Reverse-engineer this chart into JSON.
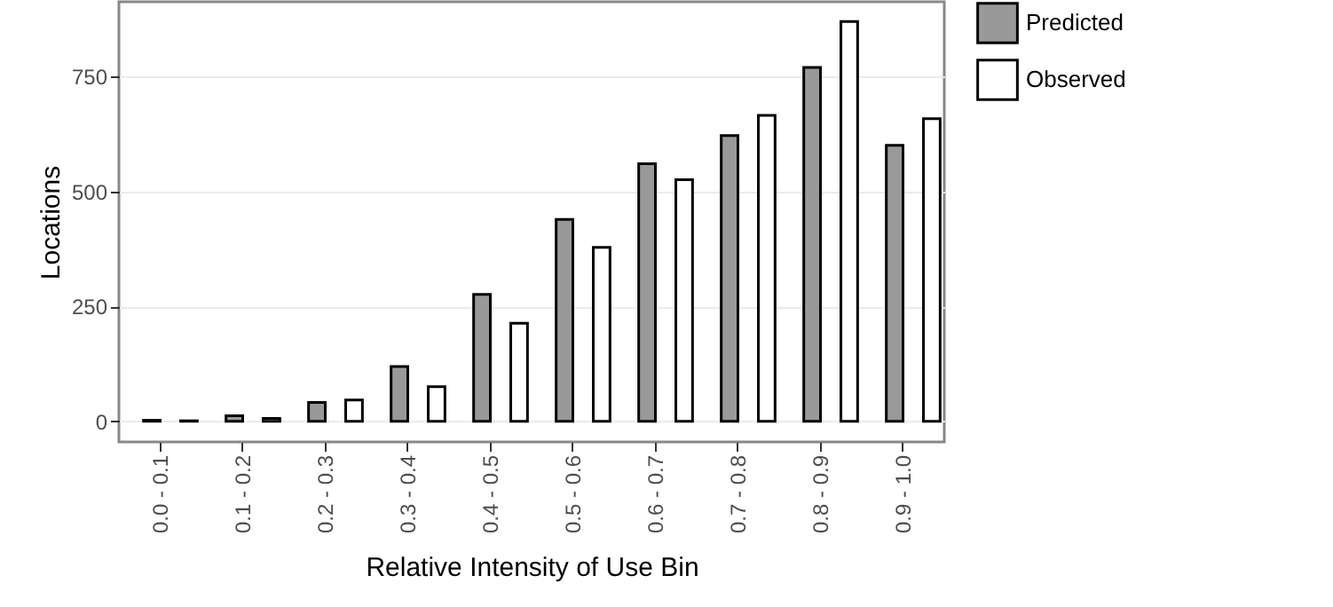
{
  "chart_data": {
    "type": "bar",
    "xlabel": "Relative Intensity of Use Bin",
    "ylabel": "Locations",
    "categories": [
      "0.0 - 0.1",
      "0.1 - 0.2",
      "0.2 - 0.3",
      "0.3 - 0.4",
      "0.4 - 0.5",
      "0.5 - 0.6",
      "0.6 - 0.7",
      "0.7 - 0.8",
      "0.8 - 0.9",
      "0.9 - 1.0"
    ],
    "series": [
      {
        "name": "Predicted",
        "color": "#999999",
        "values": [
          2,
          12,
          41,
          119,
          276,
          439,
          560,
          621,
          769,
          600
        ]
      },
      {
        "name": "Observed",
        "color": "#ffffff",
        "values": [
          1,
          6,
          46,
          75,
          213,
          378,
          525,
          665,
          869,
          658
        ]
      }
    ],
    "ylim": [
      -45,
      912
    ],
    "yticks": [
      0,
      250,
      500,
      750
    ],
    "grid": "y",
    "legend": "right"
  }
}
